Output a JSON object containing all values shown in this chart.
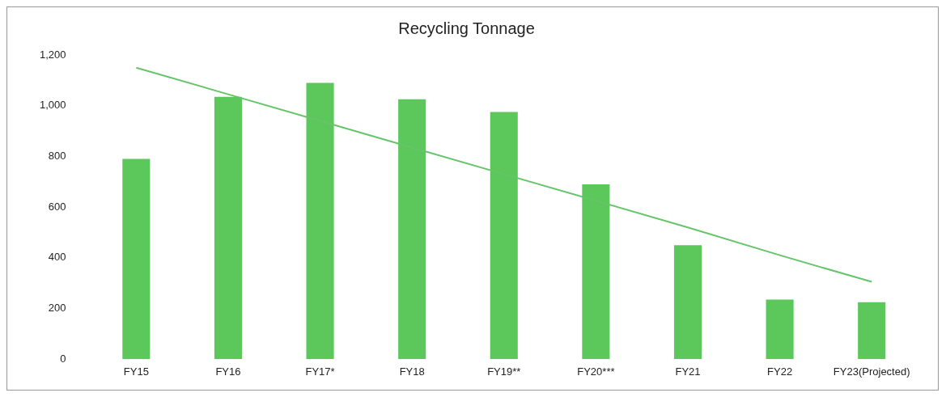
{
  "chart_data": {
    "type": "bar",
    "title": "Recycling Tonnage",
    "categories": [
      "FY15",
      "FY16",
      "FY17*",
      "FY18",
      "FY19**",
      "FY20***",
      "FY21",
      "FY22",
      "FY23(Projected)"
    ],
    "series": [
      {
        "color": "#5cc85c",
        "values": [
          790,
          1035,
          1090,
          1025,
          975,
          690,
          450,
          235,
          225
        ]
      },
      {
        "type": "line",
        "color": "#66c46a",
        "values": [
          1150,
          1045,
          940,
          835,
          730,
          625,
          520,
          410,
          305
        ],
        "marker": "none"
      }
    ],
    "ylim": [
      0,
      1200
    ],
    "yticks": [
      {
        "value": 0,
        "label": "0"
      },
      {
        "value": 200,
        "label": "200"
      },
      {
        "value": 400,
        "label": "400"
      },
      {
        "value": 600,
        "label": "600"
      },
      {
        "value": 800,
        "label": "800"
      },
      {
        "value": 1000,
        "label": "1,000"
      },
      {
        "value": 1200,
        "label": "1,200"
      }
    ],
    "grid": false,
    "legend": false
  }
}
